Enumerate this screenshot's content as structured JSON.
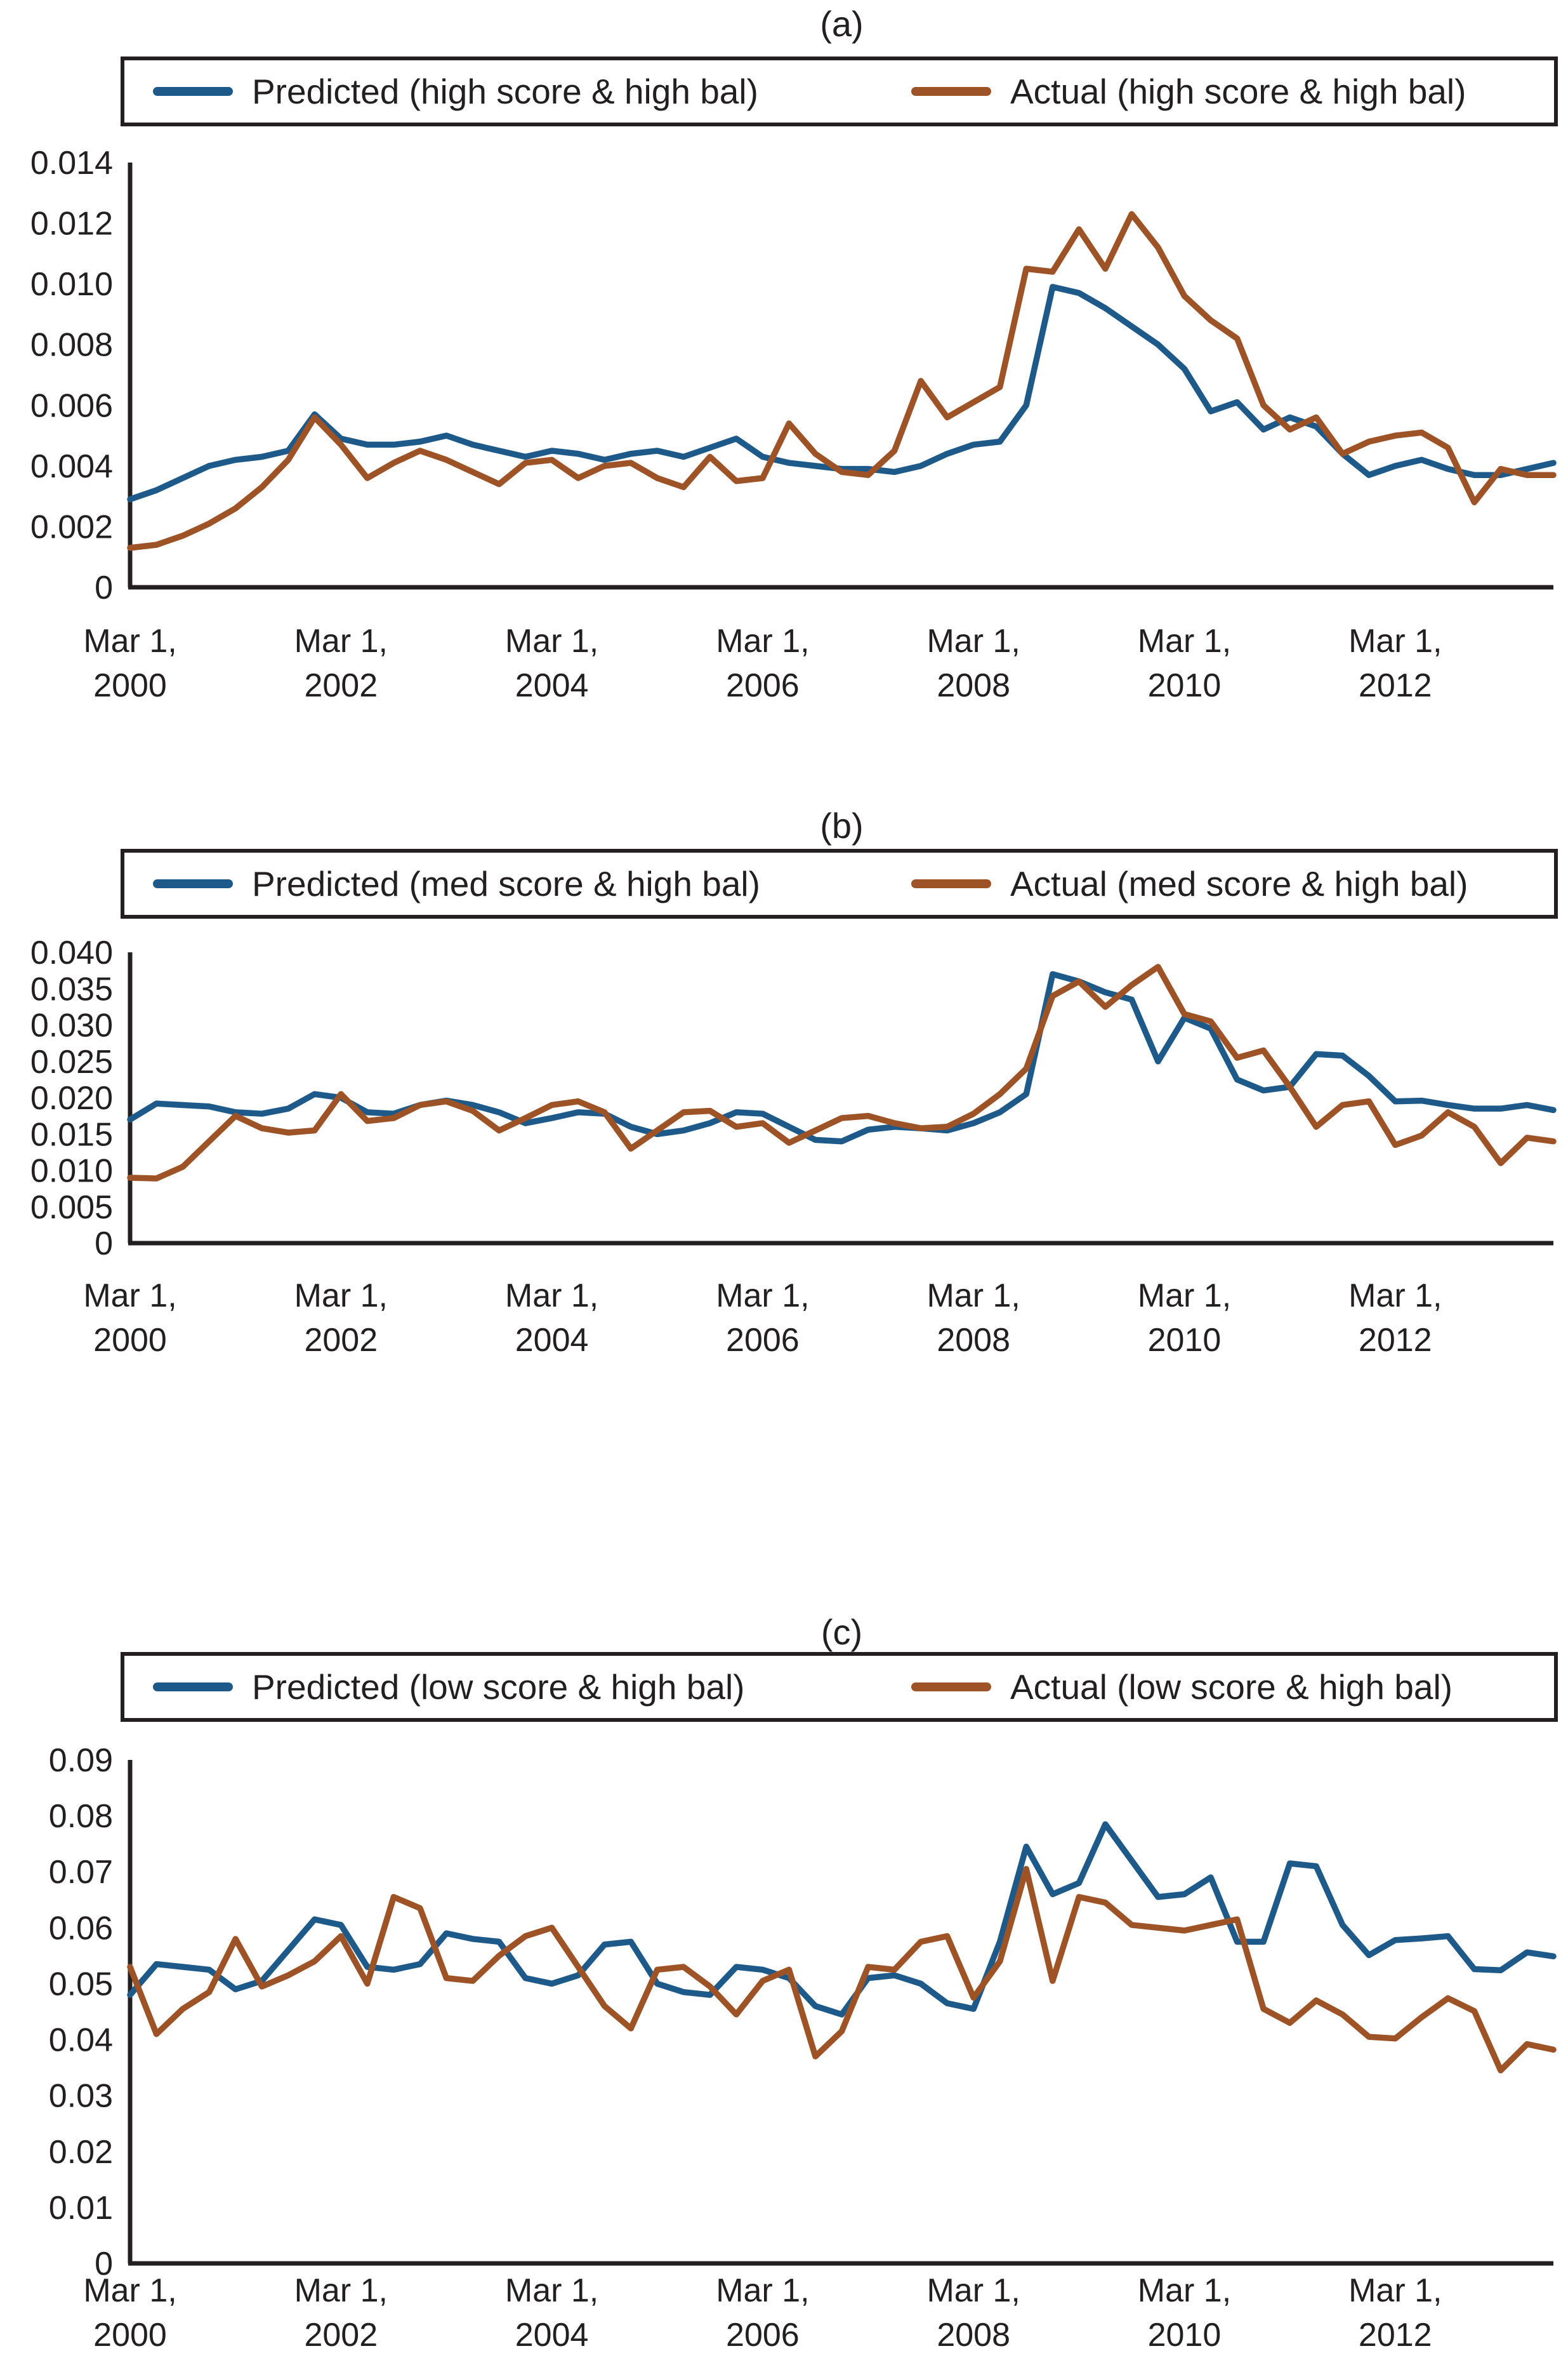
{
  "figure": {
    "background": "#ffffff",
    "axis_color": "#231f20",
    "predicted_color": "#1d5a8a",
    "actual_color": "#9e5326"
  },
  "chart_data": [
    {
      "type": "line",
      "title": "(a)",
      "ylim": [
        0,
        0.014
      ],
      "grid": false,
      "legend_position": "top",
      "yticks": [
        {
          "value": 0,
          "label": "0"
        },
        {
          "value": 0.002,
          "label": "0.002"
        },
        {
          "value": 0.004,
          "label": "0.004"
        },
        {
          "value": 0.006,
          "label": "0.006"
        },
        {
          "value": 0.008,
          "label": "0.008"
        },
        {
          "value": 0.01,
          "label": "0.010"
        },
        {
          "value": 0.012,
          "label": "0.012"
        },
        {
          "value": 0.014,
          "label": "0.014"
        }
      ],
      "xticks": [
        {
          "index": 0,
          "top": "Mar 1,",
          "bottom": "2000"
        },
        {
          "index": 8,
          "top": "Mar 1,",
          "bottom": "2002"
        },
        {
          "index": 16,
          "top": "Mar 1,",
          "bottom": "2004"
        },
        {
          "index": 24,
          "top": "Mar 1,",
          "bottom": "2006"
        },
        {
          "index": 32,
          "top": "Mar 1,",
          "bottom": "2008"
        },
        {
          "index": 40,
          "top": "Mar 1,",
          "bottom": "2010"
        },
        {
          "index": 48,
          "top": "Mar 1,",
          "bottom": "2012"
        }
      ],
      "x_unit": "quarterly from Mar 1, 2000",
      "series": [
        {
          "name": "Predicted (high score & high bal)",
          "color": "#1d5a8a",
          "values": [
            0.0029,
            0.0032,
            0.0036,
            0.004,
            0.0042,
            0.0043,
            0.0045,
            0.0057,
            0.0049,
            0.0047,
            0.0047,
            0.0048,
            0.005,
            0.0047,
            0.0045,
            0.0043,
            0.0045,
            0.0044,
            0.0042,
            0.0044,
            0.0045,
            0.0043,
            0.0046,
            0.0049,
            0.0043,
            0.0041,
            0.004,
            0.0039,
            0.0039,
            0.0038,
            0.004,
            0.0044,
            0.0047,
            0.0048,
            0.006,
            0.0099,
            0.0097,
            0.0092,
            0.0086,
            0.008,
            0.0072,
            0.0058,
            0.0061,
            0.0052,
            0.0056,
            0.0053,
            0.0044,
            0.0037,
            0.004,
            0.0042,
            0.0039,
            0.0037,
            0.0037,
            0.0039,
            0.0041
          ]
        },
        {
          "name": "Actual (high score & high bal)",
          "color": "#9e5326",
          "values": [
            0.0013,
            0.0014,
            0.0017,
            0.0021,
            0.0026,
            0.0033,
            0.0042,
            0.0056,
            0.0047,
            0.0036,
            0.0041,
            0.0045,
            0.0042,
            0.0038,
            0.0034,
            0.0041,
            0.0042,
            0.0036,
            0.004,
            0.0041,
            0.0036,
            0.0033,
            0.0043,
            0.0035,
            0.0036,
            0.0054,
            0.0044,
            0.0038,
            0.0037,
            0.0045,
            0.0068,
            0.0056,
            0.0061,
            0.0066,
            0.0105,
            0.0104,
            0.0118,
            0.0105,
            0.0123,
            0.0112,
            0.0096,
            0.0088,
            0.0082,
            0.006,
            0.0052,
            0.0056,
            0.0044,
            0.0048,
            0.005,
            0.0051,
            0.0046,
            0.0028,
            0.0039,
            0.0037,
            0.0037
          ]
        }
      ]
    },
    {
      "type": "line",
      "title": "(b)",
      "ylim": [
        0,
        0.04
      ],
      "grid": false,
      "legend_position": "top",
      "yticks": [
        {
          "value": 0,
          "label": "0"
        },
        {
          "value": 0.005,
          "label": "0.005"
        },
        {
          "value": 0.01,
          "label": "0.010"
        },
        {
          "value": 0.015,
          "label": "0.015"
        },
        {
          "value": 0.02,
          "label": "0.020"
        },
        {
          "value": 0.025,
          "label": "0.025"
        },
        {
          "value": 0.03,
          "label": "0.030"
        },
        {
          "value": 0.035,
          "label": "0.035"
        },
        {
          "value": 0.04,
          "label": "0.040"
        }
      ],
      "xticks": [
        {
          "index": 0,
          "top": "Mar 1,",
          "bottom": "2000"
        },
        {
          "index": 8,
          "top": "Mar 1,",
          "bottom": "2002"
        },
        {
          "index": 16,
          "top": "Mar 1,",
          "bottom": "2004"
        },
        {
          "index": 24,
          "top": "Mar 1,",
          "bottom": "2006"
        },
        {
          "index": 32,
          "top": "Mar 1,",
          "bottom": "2008"
        },
        {
          "index": 40,
          "top": "Mar 1,",
          "bottom": "2010"
        },
        {
          "index": 48,
          "top": "Mar 1,",
          "bottom": "2012"
        }
      ],
      "x_unit": "quarterly from Mar 1, 2000",
      "series": [
        {
          "name": "Predicted (med score & high bal)",
          "color": "#1d5a8a",
          "values": [
            0.017,
            0.0192,
            0.019,
            0.0188,
            0.018,
            0.0178,
            0.0185,
            0.0205,
            0.02,
            0.018,
            0.0178,
            0.019,
            0.0196,
            0.019,
            0.018,
            0.0165,
            0.0172,
            0.018,
            0.0178,
            0.016,
            0.015,
            0.0155,
            0.0165,
            0.018,
            0.0178,
            0.016,
            0.0142,
            0.014,
            0.0156,
            0.016,
            0.0158,
            0.0155,
            0.0165,
            0.018,
            0.0205,
            0.037,
            0.036,
            0.0345,
            0.0335,
            0.025,
            0.031,
            0.0295,
            0.0225,
            0.021,
            0.0215,
            0.026,
            0.0258,
            0.023,
            0.0195,
            0.0196,
            0.019,
            0.0185,
            0.0185,
            0.019,
            0.0183
          ]
        },
        {
          "name": "Actual (med score & high bal)",
          "color": "#9e5326",
          "values": [
            0.009,
            0.0089,
            0.0105,
            0.014,
            0.0175,
            0.0158,
            0.0152,
            0.0155,
            0.0205,
            0.0168,
            0.0172,
            0.019,
            0.0195,
            0.0182,
            0.0155,
            0.0172,
            0.019,
            0.0195,
            0.018,
            0.013,
            0.0155,
            0.018,
            0.0182,
            0.016,
            0.0165,
            0.0138,
            0.0155,
            0.0172,
            0.0175,
            0.0165,
            0.0158,
            0.016,
            0.0178,
            0.0205,
            0.024,
            0.034,
            0.036,
            0.0325,
            0.0355,
            0.038,
            0.0315,
            0.0305,
            0.0255,
            0.0265,
            0.0215,
            0.016,
            0.019,
            0.0195,
            0.0135,
            0.0148,
            0.018,
            0.016,
            0.011,
            0.0145,
            0.014
          ]
        }
      ]
    },
    {
      "type": "line",
      "title": "(c)",
      "ylim": [
        0,
        0.09
      ],
      "grid": false,
      "legend_position": "top",
      "yticks": [
        {
          "value": 0,
          "label": "0"
        },
        {
          "value": 0.01,
          "label": "0.01"
        },
        {
          "value": 0.02,
          "label": "0.02"
        },
        {
          "value": 0.03,
          "label": "0.03"
        },
        {
          "value": 0.04,
          "label": "0.04"
        },
        {
          "value": 0.05,
          "label": "0.05"
        },
        {
          "value": 0.06,
          "label": "0.06"
        },
        {
          "value": 0.07,
          "label": "0.07"
        },
        {
          "value": 0.08,
          "label": "0.08"
        },
        {
          "value": 0.09,
          "label": "0.09"
        }
      ],
      "xticks": [
        {
          "index": 0,
          "top": "Mar 1,",
          "bottom": "2000"
        },
        {
          "index": 8,
          "top": "Mar 1,",
          "bottom": "2002"
        },
        {
          "index": 16,
          "top": "Mar 1,",
          "bottom": "2004"
        },
        {
          "index": 24,
          "top": "Mar 1,",
          "bottom": "2006"
        },
        {
          "index": 32,
          "top": "Mar 1,",
          "bottom": "2008"
        },
        {
          "index": 40,
          "top": "Mar 1,",
          "bottom": "2010"
        },
        {
          "index": 48,
          "top": "Mar 1,",
          "bottom": "2012"
        }
      ],
      "x_unit": "quarterly from Mar 1, 2000",
      "series": [
        {
          "name": "Predicted (low score & high bal)",
          "color": "#1d5a8a",
          "values": [
            0.048,
            0.0535,
            0.053,
            0.0525,
            0.049,
            0.0505,
            0.056,
            0.0615,
            0.0605,
            0.053,
            0.0525,
            0.0535,
            0.059,
            0.058,
            0.0575,
            0.051,
            0.05,
            0.0515,
            0.057,
            0.0575,
            0.05,
            0.0485,
            0.048,
            0.053,
            0.0525,
            0.051,
            0.046,
            0.0445,
            0.051,
            0.0515,
            0.05,
            0.0465,
            0.0455,
            0.0575,
            0.0745,
            0.066,
            0.068,
            0.0785,
            0.072,
            0.0655,
            0.066,
            0.069,
            0.0575,
            0.0575,
            0.0715,
            0.071,
            0.0605,
            0.0551,
            0.0578,
            0.0581,
            0.0585,
            0.0526,
            0.0524,
            0.0556,
            0.0549
          ]
        },
        {
          "name": "Actual (low score & high bal)",
          "color": "#9e5326",
          "values": [
            0.053,
            0.041,
            0.0455,
            0.0485,
            0.058,
            0.0495,
            0.0515,
            0.054,
            0.0585,
            0.05,
            0.0655,
            0.0635,
            0.051,
            0.0505,
            0.055,
            0.0585,
            0.06,
            0.053,
            0.046,
            0.042,
            0.0525,
            0.053,
            0.0495,
            0.0445,
            0.0505,
            0.0525,
            0.037,
            0.0415,
            0.053,
            0.0525,
            0.0575,
            0.0585,
            0.0475,
            0.054,
            0.0705,
            0.0505,
            0.0655,
            0.0645,
            0.0605,
            0.06,
            0.0595,
            0.0605,
            0.0615,
            0.0455,
            0.043,
            0.047,
            0.0445,
            0.0405,
            0.0402,
            0.044,
            0.0474,
            0.0451,
            0.0345,
            0.0392,
            0.0382
          ]
        }
      ]
    }
  ]
}
